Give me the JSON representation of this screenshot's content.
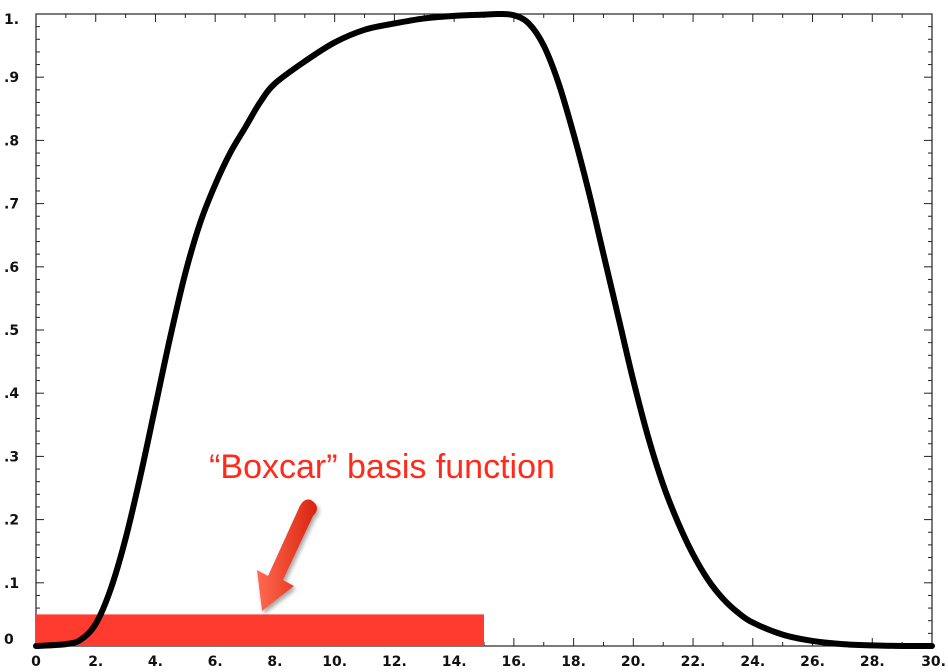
{
  "chart_data": {
    "type": "line",
    "title": "",
    "xlabel": "",
    "ylabel": "",
    "xlim": [
      0,
      30
    ],
    "ylim": [
      0,
      1
    ],
    "x_tick_labels": [
      "0",
      "2.",
      "4.",
      "6.",
      "8.",
      "10.",
      "12.",
      "14.",
      "16.",
      "18.",
      "20.",
      "22.",
      "24.",
      "26.",
      "28.",
      "30."
    ],
    "y_tick_labels": [
      "0",
      ".1",
      ".2",
      ".3",
      ".4",
      ".5",
      ".6",
      ".7",
      ".8",
      ".9",
      "1."
    ],
    "grid": false,
    "series": [
      {
        "color": "#000000",
        "x": [
          0,
          1,
          1.5,
          2,
          2.5,
          3,
          3.5,
          4,
          4.5,
          5,
          5.5,
          6,
          6.5,
          7,
          7.5,
          8,
          9,
          10,
          11,
          12,
          13,
          14,
          15,
          15.5,
          16,
          16.5,
          17,
          17.5,
          18,
          18.5,
          19,
          19.5,
          20,
          20.5,
          21,
          21.5,
          22,
          22.5,
          23,
          23.5,
          24,
          25,
          26,
          27,
          28,
          29,
          30
        ],
        "y": [
          0,
          0.003,
          0.01,
          0.035,
          0.09,
          0.17,
          0.27,
          0.38,
          0.49,
          0.59,
          0.67,
          0.73,
          0.78,
          0.82,
          0.86,
          0.89,
          0.925,
          0.955,
          0.975,
          0.985,
          0.993,
          0.997,
          0.999,
          1.0,
          0.998,
          0.985,
          0.95,
          0.89,
          0.81,
          0.72,
          0.62,
          0.52,
          0.42,
          0.33,
          0.255,
          0.195,
          0.145,
          0.105,
          0.075,
          0.053,
          0.037,
          0.018,
          0.008,
          0.003,
          0.001,
          0,
          0
        ]
      }
    ],
    "boxcar": {
      "x_start": 0,
      "x_end": 15,
      "height": 0.05,
      "color": "#ff3b30"
    },
    "annotation": {
      "text": "“Boxcar” basis function",
      "color": "#ff2a1a"
    }
  }
}
